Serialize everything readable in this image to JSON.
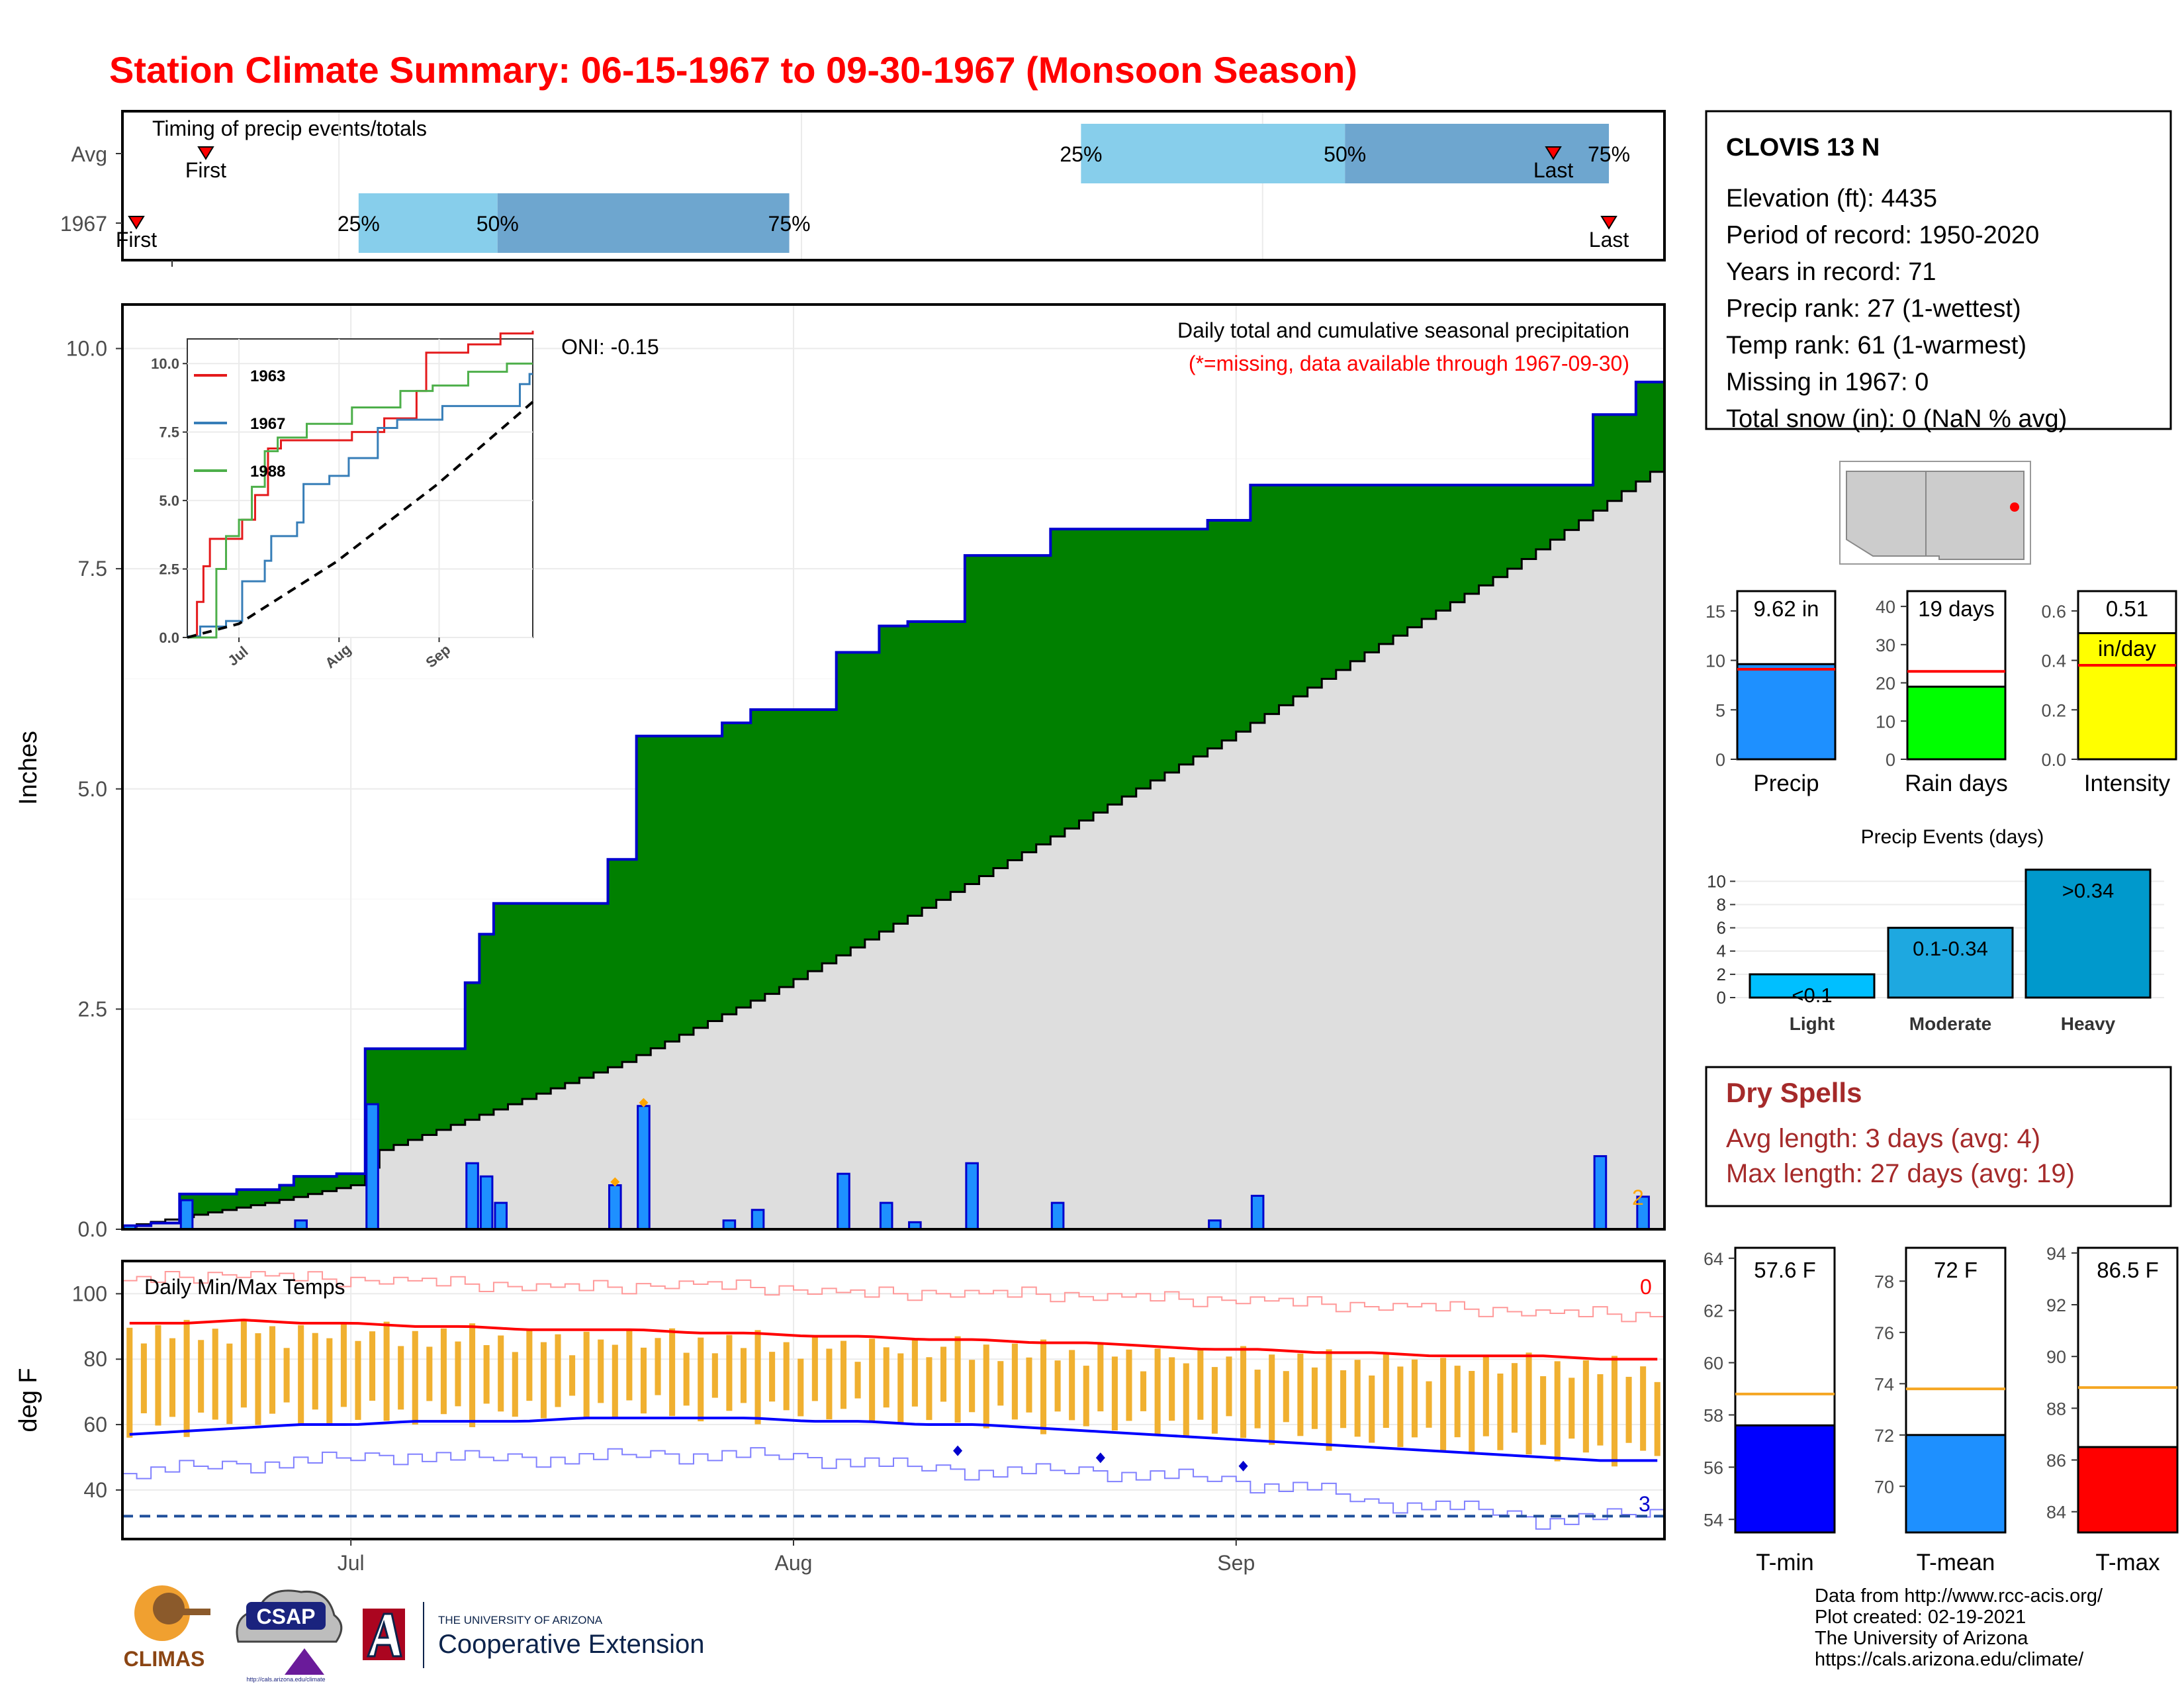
{
  "title": "Station Climate Summary: 06-15-1967 to 09-30-1967 (Monsoon Season)",
  "colors": {
    "title": "#ff0000",
    "q1": "#87ceeb",
    "q2": "#6ea6cf",
    "daily_bar": "#1e90ff",
    "cum_green": "#008000",
    "normal_fill": "#dedede",
    "bar_outline": "#0000cd",
    "y1963": "#e41a1c",
    "y1967": "#377eb8",
    "y1988": "#4daf4a",
    "max_line": "#ff0000",
    "min_line": "#0000ff",
    "temp_bar": "#f0b030",
    "dry_spell": "#a52a2a",
    "precip_bar": "#1e90ff",
    "raindays_bar": "#00ff00",
    "intensity_bar": "#ffff00",
    "events_bar": "#00bfff",
    "tmin_bar": "#0000ff",
    "tmean_bar": "#1e90ff",
    "tmax_bar": "#ff0000"
  },
  "timing": {
    "title": "Timing of precip events/totals",
    "rows": [
      {
        "label": "Avg",
        "first": 6,
        "last": 103,
        "q25": 69,
        "q50": 88,
        "q75": 107,
        "first_label": "First",
        "last_label": "Last",
        "q25_label": "25%",
        "q50_label": "50%",
        "q75_label": "75%"
      },
      {
        "label": "1967",
        "first": 1,
        "last": 107,
        "q25": 17,
        "q50": 27,
        "q75": 48,
        "first_label": "First",
        "last_label": "Last",
        "q25_label": "25%",
        "q50_label": "50%",
        "q75_label": "75%"
      }
    ]
  },
  "month_labels": [
    "Jul",
    "Aug",
    "Sep"
  ],
  "chart_data": [
    {
      "type": "area",
      "title": "Daily total and cumulative seasonal precipitation",
      "subtitle": "(*=missing, data available through 1967-09-30)",
      "ylabel": "Inches",
      "ylim": [
        0,
        10.5
      ],
      "yticks": [
        "0.0",
        "2.5",
        "5.0",
        "7.5",
        "10.0"
      ],
      "x_start": "1967-06-15",
      "x_end": "1967-09-30",
      "oni_label": "ONI: -0.15",
      "missing_count": "2",
      "cumulative_1967": [
        {
          "date": "1967-06-15",
          "y": 0.04
        },
        {
          "date": "1967-06-17",
          "y": 0.07
        },
        {
          "date": "1967-06-19",
          "y": 0.4
        },
        {
          "date": "1967-06-23",
          "y": 0.45
        },
        {
          "date": "1967-06-26",
          "y": 0.5
        },
        {
          "date": "1967-06-27",
          "y": 0.6
        },
        {
          "date": "1967-06-30",
          "y": 0.63
        },
        {
          "date": "1967-07-02",
          "y": 2.05
        },
        {
          "date": "1967-07-09",
          "y": 2.8
        },
        {
          "date": "1967-07-10",
          "y": 3.35
        },
        {
          "date": "1967-07-11",
          "y": 3.7
        },
        {
          "date": "1967-07-19",
          "y": 4.2
        },
        {
          "date": "1967-07-21",
          "y": 5.6
        },
        {
          "date": "1967-07-27",
          "y": 5.75
        },
        {
          "date": "1967-07-29",
          "y": 5.9
        },
        {
          "date": "1967-08-04",
          "y": 6.55
        },
        {
          "date": "1967-08-07",
          "y": 6.85
        },
        {
          "date": "1967-08-09",
          "y": 6.9
        },
        {
          "date": "1967-08-13",
          "y": 7.65
        },
        {
          "date": "1967-08-19",
          "y": 7.95
        },
        {
          "date": "1967-08-30",
          "y": 8.05
        },
        {
          "date": "1967-09-02",
          "y": 8.45
        },
        {
          "date": "1967-09-20",
          "y": 8.45
        },
        {
          "date": "1967-09-26",
          "y": 9.25
        },
        {
          "date": "1967-09-27",
          "y": 9.25
        },
        {
          "date": "1967-09-29",
          "y": 9.62
        },
        {
          "date": "1967-09-30",
          "y": 9.62
        }
      ],
      "normal_cumulative": [
        {
          "date": "1967-06-15",
          "y": 0.03
        },
        {
          "date": "1967-06-25",
          "y": 0.3
        },
        {
          "date": "1967-07-01",
          "y": 0.5
        },
        {
          "date": "1967-07-03",
          "y": 0.9
        },
        {
          "date": "1967-07-10",
          "y": 1.3
        },
        {
          "date": "1967-07-20",
          "y": 1.9
        },
        {
          "date": "1967-07-31",
          "y": 2.75
        },
        {
          "date": "1967-08-10",
          "y": 3.65
        },
        {
          "date": "1967-08-20",
          "y": 4.55
        },
        {
          "date": "1967-08-31",
          "y": 5.55
        },
        {
          "date": "1967-09-10",
          "y": 6.55
        },
        {
          "date": "1967-09-20",
          "y": 7.5
        },
        {
          "date": "1967-09-30",
          "y": 8.6
        }
      ],
      "daily": [
        {
          "date": "1967-06-15",
          "y": 0.04
        },
        {
          "date": "1967-06-19",
          "y": 0.33
        },
        {
          "date": "1967-06-27",
          "y": 0.1
        },
        {
          "date": "1967-07-02",
          "y": 1.42
        },
        {
          "date": "1967-07-09",
          "y": 0.75
        },
        {
          "date": "1967-07-10",
          "y": 0.6
        },
        {
          "date": "1967-07-11",
          "y": 0.3
        },
        {
          "date": "1967-07-19",
          "y": 0.5
        },
        {
          "date": "1967-07-21",
          "y": 1.4
        },
        {
          "date": "1967-07-27",
          "y": 0.1
        },
        {
          "date": "1967-07-29",
          "y": 0.22
        },
        {
          "date": "1967-08-04",
          "y": 0.63
        },
        {
          "date": "1967-08-07",
          "y": 0.3
        },
        {
          "date": "1967-08-09",
          "y": 0.08
        },
        {
          "date": "1967-08-13",
          "y": 0.75
        },
        {
          "date": "1967-08-19",
          "y": 0.3
        },
        {
          "date": "1967-08-30",
          "y": 0.1
        },
        {
          "date": "1967-09-02",
          "y": 0.38
        },
        {
          "date": "1967-09-26",
          "y": 0.83
        },
        {
          "date": "1967-09-29",
          "y": 0.37
        }
      ],
      "missing_markers": [
        {
          "date": "1967-07-19",
          "y": 0.5
        },
        {
          "date": "1967-07-21",
          "y": 1.4
        }
      ]
    },
    {
      "type": "line",
      "title": "",
      "ylim": [
        0,
        10.9
      ],
      "yticks": [
        "0.0",
        "2.5",
        "5.0",
        "7.5",
        "10.0"
      ],
      "xticks": [
        "Jul",
        "Aug",
        "Sep"
      ],
      "series": [
        {
          "name": "1963",
          "points": [
            {
              "date": "1967-06-15",
              "y": 0
            },
            {
              "date": "1967-06-18",
              "y": 1.3
            },
            {
              "date": "1967-06-20",
              "y": 2.6
            },
            {
              "date": "1967-06-22",
              "y": 3.6
            },
            {
              "date": "1967-06-25",
              "y": 3.6
            },
            {
              "date": "1967-07-02",
              "y": 4.3
            },
            {
              "date": "1967-07-06",
              "y": 5.2
            },
            {
              "date": "1967-07-10",
              "y": 6.9
            },
            {
              "date": "1967-07-14",
              "y": 7.2
            },
            {
              "date": "1967-08-05",
              "y": 7.5
            },
            {
              "date": "1967-08-15",
              "y": 8.0
            },
            {
              "date": "1967-08-25",
              "y": 9.0
            },
            {
              "date": "1967-08-28",
              "y": 10.4
            },
            {
              "date": "1967-09-10",
              "y": 10.7
            },
            {
              "date": "1967-09-20",
              "y": 11.1
            },
            {
              "date": "1967-09-30",
              "y": 11.2
            }
          ]
        },
        {
          "name": "1967",
          "points": [
            {
              "date": "1967-06-15",
              "y": 0.04
            },
            {
              "date": "1967-06-19",
              "y": 0.4
            },
            {
              "date": "1967-06-27",
              "y": 0.6
            },
            {
              "date": "1967-07-02",
              "y": 2.05
            },
            {
              "date": "1967-07-09",
              "y": 2.8
            },
            {
              "date": "1967-07-11",
              "y": 3.7
            },
            {
              "date": "1967-07-19",
              "y": 4.2
            },
            {
              "date": "1967-07-21",
              "y": 5.6
            },
            {
              "date": "1967-07-29",
              "y": 5.9
            },
            {
              "date": "1967-08-04",
              "y": 6.55
            },
            {
              "date": "1967-08-13",
              "y": 7.65
            },
            {
              "date": "1967-08-19",
              "y": 7.95
            },
            {
              "date": "1967-09-02",
              "y": 8.45
            },
            {
              "date": "1967-09-26",
              "y": 9.25
            },
            {
              "date": "1967-09-29",
              "y": 9.62
            },
            {
              "date": "1967-09-30",
              "y": 9.62
            }
          ]
        },
        {
          "name": "1988",
          "points": [
            {
              "date": "1967-06-15",
              "y": 0
            },
            {
              "date": "1967-06-22",
              "y": 0
            },
            {
              "date": "1967-06-24",
              "y": 2.5
            },
            {
              "date": "1967-06-27",
              "y": 3.7
            },
            {
              "date": "1967-07-01",
              "y": 4.3
            },
            {
              "date": "1967-07-05",
              "y": 5.5
            },
            {
              "date": "1967-07-09",
              "y": 6.8
            },
            {
              "date": "1967-07-13",
              "y": 7.3
            },
            {
              "date": "1967-07-22",
              "y": 7.8
            },
            {
              "date": "1967-08-05",
              "y": 8.4
            },
            {
              "date": "1967-08-20",
              "y": 9.0
            },
            {
              "date": "1967-08-30",
              "y": 9.2
            },
            {
              "date": "1967-09-10",
              "y": 9.7
            },
            {
              "date": "1967-09-22",
              "y": 10.0
            },
            {
              "date": "1967-09-30",
              "y": 10.0
            }
          ]
        },
        {
          "name": "normal",
          "points": [
            {
              "date": "1967-06-15",
              "y": 0
            },
            {
              "date": "1967-07-01",
              "y": 0.5
            },
            {
              "date": "1967-07-31",
              "y": 2.75
            },
            {
              "date": "1967-08-31",
              "y": 5.55
            },
            {
              "date": "1967-09-30",
              "y": 8.6
            }
          ]
        }
      ]
    },
    {
      "type": "bar",
      "title": "Daily Min/Max Temps",
      "ylabel": "deg F",
      "ylim": [
        25,
        110
      ],
      "yticks": [
        "40",
        "60",
        "80",
        "100"
      ],
      "missing_count_max": "0",
      "missing_count_min": "3",
      "freeze_line": 32,
      "avg_max": [
        91,
        91,
        92,
        91,
        91,
        90,
        90,
        89,
        89,
        89,
        88,
        88,
        87,
        87,
        86,
        86,
        85,
        85,
        84,
        83,
        83,
        82,
        82,
        81,
        81,
        81,
        80,
        80
      ],
      "avg_min": [
        57,
        58,
        59,
        60,
        60,
        61,
        61,
        61,
        62,
        62,
        62,
        62,
        61,
        61,
        60,
        60,
        59,
        58,
        57,
        56,
        55,
        54,
        53,
        52,
        51,
        50,
        49,
        49
      ],
      "record_max": [
        104,
        105,
        106,
        105,
        104,
        104,
        103,
        102,
        102,
        102,
        103,
        102,
        101,
        100,
        100,
        100,
        100,
        99,
        99,
        98,
        98,
        97,
        96,
        96,
        95,
        94,
        94,
        93
      ],
      "record_min": [
        45,
        47,
        48,
        49,
        50,
        51,
        50,
        50,
        50,
        51,
        51,
        51,
        50,
        49,
        47,
        46,
        46,
        46,
        45,
        44,
        42,
        41,
        36,
        36,
        34,
        31,
        32,
        33
      ]
    }
  ],
  "station": {
    "name": "CLOVIS 13 N",
    "lines": [
      "Elevation (ft): 4435",
      "Period of record: 1950-2020",
      "Years in record: 71",
      "Precip rank: 27 (1-wettest)",
      "Temp rank: 61 (1-warmest)",
      "Missing in 1967: 0",
      "Total snow (in): 0 (NaN % avg)"
    ]
  },
  "summary_bars": [
    {
      "label": "Precip",
      "value": 9.62,
      "avg": 9.1,
      "ylim": [
        0,
        17
      ],
      "yticks": [
        "0",
        "5",
        "10",
        "15"
      ],
      "tickvals": [
        0,
        5,
        10,
        15
      ],
      "value_label": "9.62 in"
    },
    {
      "label": "Rain days",
      "value": 19,
      "avg": 23,
      "ylim": [
        0,
        44
      ],
      "yticks": [
        "0",
        "10",
        "20",
        "30",
        "40"
      ],
      "tickvals": [
        0,
        10,
        20,
        30,
        40
      ],
      "value_label": "19 days"
    },
    {
      "label": "Intensity",
      "value": 0.51,
      "avg": 0.38,
      "ylim": [
        0,
        0.68
      ],
      "yticks": [
        "0.0",
        "0.2",
        "0.4",
        "0.6"
      ],
      "tickvals": [
        0,
        0.2,
        0.4,
        0.6
      ],
      "value_label": "0.51\nin/day"
    }
  ],
  "events": {
    "title": "Precip Events (days)",
    "yticks": [
      "0",
      "2",
      "4",
      "6",
      "8",
      "10"
    ],
    "bars": [
      {
        "label": "Light",
        "value": 2,
        "value_label": "<0.1"
      },
      {
        "label": "Moderate",
        "value": 6,
        "value_label": "0.1-0.34"
      },
      {
        "label": "Heavy",
        "value": 11,
        "value_label": ">0.34"
      }
    ]
  },
  "dry_spells": {
    "title": "Dry Spells",
    "avg_line": "Avg length: 3 days (avg: 4)",
    "max_line": "Max length: 27 days (avg: 19)"
  },
  "temp_bars": [
    {
      "label": "T-min",
      "value": 57.6,
      "avg": 58.8,
      "ylim": [
        53.5,
        64.4
      ],
      "yticks": [
        "54",
        "56",
        "58",
        "60",
        "62",
        "64"
      ],
      "tickvals": [
        54,
        56,
        58,
        60,
        62,
        64
      ],
      "value_label": "57.6 F"
    },
    {
      "label": "T-mean",
      "value": 72,
      "avg": 73.8,
      "ylim": [
        68.2,
        79.3
      ],
      "yticks": [
        "70",
        "72",
        "74",
        "76",
        "78"
      ],
      "tickvals": [
        70,
        72,
        74,
        76,
        78
      ],
      "value_label": "72 F"
    },
    {
      "label": "T-max",
      "value": 86.5,
      "avg": 88.8,
      "ylim": [
        83.2,
        94.2
      ],
      "yticks": [
        "84",
        "86",
        "88",
        "90",
        "92",
        "94"
      ],
      "tickvals": [
        84,
        86,
        88,
        90,
        92,
        94
      ],
      "value_label": "86.5 F"
    }
  ],
  "footer": {
    "lines": [
      "Data from http://www.rcc-acis.org/",
      "Plot created: 02-19-2021",
      "The University of Arizona",
      "https://cals.arizona.edu/climate/"
    ],
    "logos": {
      "climas": "CLIMAS",
      "csap": "CSAP",
      "csap_url": "http://cals.arizona.edu/climate",
      "ua_small": "THE UNIVERSITY OF ARIZONA",
      "ua_big": "Cooperative Extension"
    }
  }
}
